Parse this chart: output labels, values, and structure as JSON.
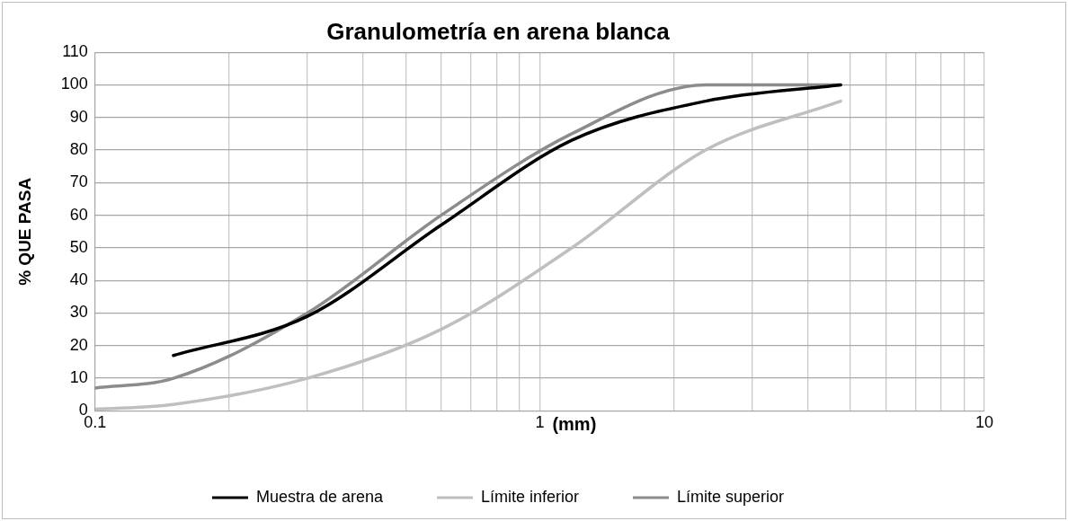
{
  "chart_data": {
    "type": "line",
    "title": "Granulometría en arena blanca",
    "xlabel": "(mm)",
    "ylabel": "% QUE PASA",
    "log": "x",
    "grid": true,
    "legend": "bottom",
    "marker": "none",
    "line_style": "solid",
    "xlim": [
      0.1,
      10
    ],
    "xticks": [
      0.1,
      {
        "value": 0.2,
        "label": null
      },
      {
        "value": 0.3,
        "label": null
      },
      {
        "value": 0.4,
        "label": null
      },
      {
        "value": 0.5,
        "label": null
      },
      {
        "value": 0.6,
        "label": null
      },
      {
        "value": 0.7,
        "label": null
      },
      {
        "value": 0.8,
        "label": null
      },
      {
        "value": 0.9,
        "label": null
      },
      1,
      {
        "value": 2,
        "label": null
      },
      {
        "value": 3,
        "label": null
      },
      {
        "value": 4,
        "label": null
      },
      {
        "value": 5,
        "label": null
      },
      {
        "value": 6,
        "label": null
      },
      {
        "value": 7,
        "label": null
      },
      {
        "value": 8,
        "label": null
      },
      {
        "value": 9,
        "label": null
      },
      10
    ],
    "ylim": [
      0,
      110
    ],
    "yticks": [
      0,
      10,
      20,
      30,
      40,
      50,
      60,
      70,
      80,
      90,
      100,
      110
    ],
    "series": [
      {
        "name": "Muestra de arena",
        "color": "#000000",
        "x": [
          0.15,
          0.3,
          0.6,
          1.18,
          2.36,
          4.75
        ],
        "values": [
          17,
          29,
          57,
          83,
          95,
          100
        ]
      },
      {
        "name": "Límite inferior",
        "color": "#bfbfbf",
        "x": [
          0.1,
          0.15,
          0.3,
          0.6,
          1.18,
          2.36,
          4.75
        ],
        "values": [
          0.5,
          2,
          10,
          25,
          50,
          80,
          95
        ]
      },
      {
        "name": "Límite superior",
        "color": "#8c8c8c",
        "x": [
          0.1,
          0.15,
          0.3,
          0.6,
          1.18,
          2.36,
          4.75
        ],
        "values": [
          7,
          10,
          30,
          60,
          85,
          100,
          100
        ]
      }
    ]
  }
}
